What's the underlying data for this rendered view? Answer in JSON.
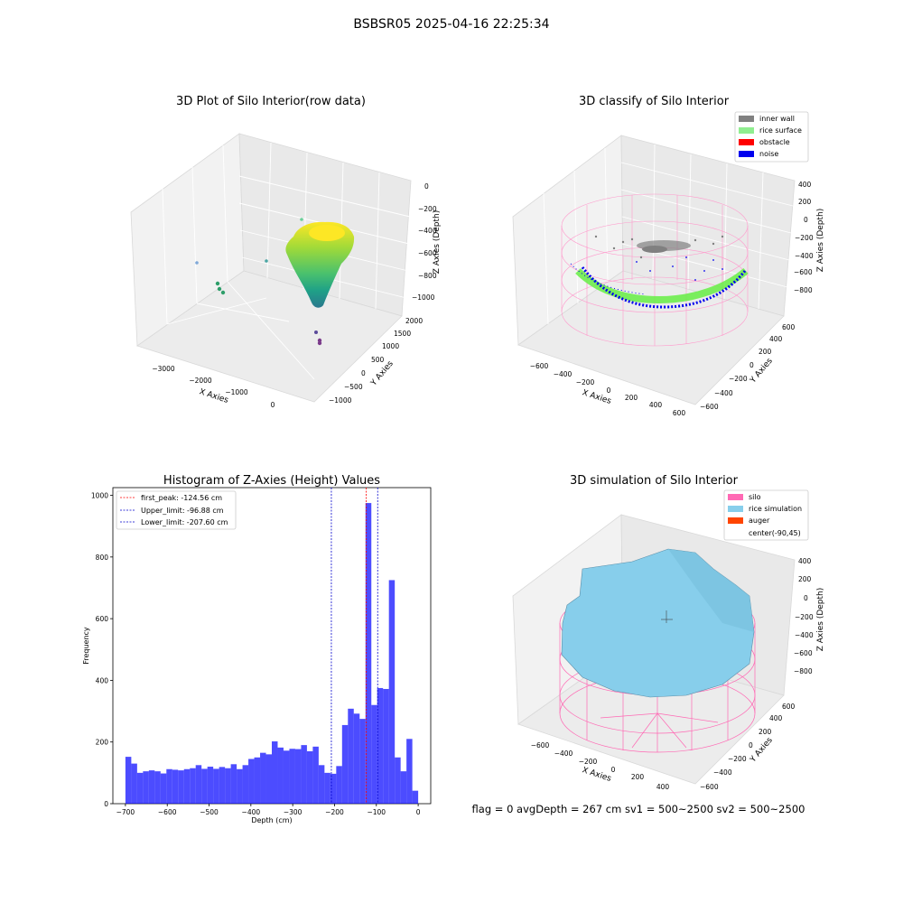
{
  "figure": {
    "suptitle": "BSBSR05 2025-04-16 22:25:34",
    "footer": "flag = 0     avgDepth = 267 cm  sv1 = 500~2500  sv2 = 500~2500"
  },
  "panels": {
    "raw": {
      "title": "3D Plot of Silo Interior(row data)",
      "xlabel": "X Axies",
      "ylabel": "Y Axies",
      "zlabel": "Z Axies (Depth)",
      "xticks": [
        "−3000",
        "−2000",
        "−1000",
        "0"
      ],
      "yticks": [
        "−1000",
        "−500",
        "0",
        "500",
        "1000",
        "1500",
        "2000"
      ],
      "zticks": [
        "0",
        "−200",
        "−400",
        "−600",
        "−800",
        "−1000"
      ]
    },
    "classify": {
      "title": "3D classify of Silo Interior",
      "xlabel": "X Axies",
      "ylabel": "Y Axies",
      "zlabel": "Z Axies (Depth)",
      "xticks": [
        "−600",
        "−400",
        "−200",
        "0",
        "200",
        "400",
        "600"
      ],
      "yticks": [
        "−600",
        "−400",
        "−200",
        "0",
        "200",
        "400",
        "600"
      ],
      "zticks": [
        "400",
        "200",
        "0",
        "−200",
        "−400",
        "−600",
        "−800"
      ],
      "legend": [
        {
          "label": "inner wall",
          "color": "#808080"
        },
        {
          "label": "rice surface",
          "color": "#90ee90"
        },
        {
          "label": "obstacle",
          "color": "#ff0000"
        },
        {
          "label": "noise",
          "color": "#0000ff"
        }
      ]
    },
    "simulation": {
      "title": "3D simulation of Silo Interior",
      "xlabel": "X Axies",
      "ylabel": "Y Axies",
      "zlabel": "Z Axies (Depth)",
      "xticks": [
        "−600",
        "−400",
        "−200",
        "0",
        "200",
        "400"
      ],
      "yticks": [
        "−600",
        "−400",
        "−200",
        "0",
        "200",
        "400",
        "600"
      ],
      "zticks": [
        "400",
        "200",
        "0",
        "−200",
        "−400",
        "−600",
        "−800"
      ],
      "legend": [
        {
          "label": "silo",
          "color": "#ff69b4"
        },
        {
          "label": "rice simulation",
          "color": "#87ceeb"
        },
        {
          "label": "auger",
          "color": "#ff4500"
        },
        {
          "label": "center(-90,45)",
          "color": "#ffffff"
        }
      ]
    }
  },
  "chart_data": [
    {
      "type": "bar",
      "title": "Histogram of Z-Axies (Height) Values",
      "xlabel": "Depth (cm)",
      "ylabel": "Frequency",
      "xlim": [
        -730,
        30
      ],
      "ylim": [
        0,
        1025
      ],
      "xticks": [
        -700,
        -600,
        -500,
        -400,
        -300,
        -200,
        -100,
        0
      ],
      "xtick_labels": [
        "−700",
        "−600",
        "−500",
        "−400",
        "−300",
        "−200",
        "−100",
        "0"
      ],
      "yticks": [
        0,
        200,
        400,
        600,
        800,
        1000
      ],
      "bar_color": "#0000ff",
      "bin_start": -700,
      "bin_width": 14,
      "values": [
        152,
        130,
        100,
        105,
        108,
        105,
        98,
        112,
        110,
        108,
        112,
        115,
        125,
        113,
        120,
        113,
        119,
        115,
        128,
        112,
        125,
        145,
        150,
        165,
        160,
        202,
        182,
        172,
        178,
        177,
        190,
        170,
        185,
        125,
        100,
        97,
        122,
        255,
        308,
        292,
        275,
        975,
        320,
        375,
        372,
        725,
        150,
        105,
        210,
        42
      ],
      "lines": [
        {
          "label": "first_peak: -124.56 cm",
          "x": -124.56,
          "color": "#ff0000"
        },
        {
          "label": "Upper_limit: -96.88 cm",
          "x": -96.88,
          "color": "#0000cd"
        },
        {
          "label": "Lower_limit: -207.60 cm",
          "x": -207.6,
          "color": "#0000cd"
        }
      ],
      "legend_position": "top-left",
      "grid": false
    }
  ]
}
